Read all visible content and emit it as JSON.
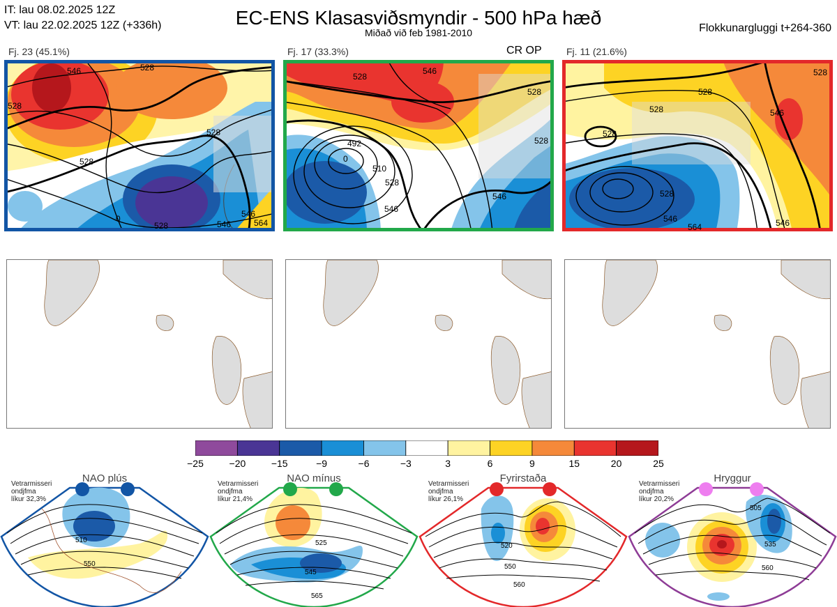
{
  "header": {
    "it_line": "IT: lau 08.02.2025 12Z",
    "vt_line": "VT: lau 22.02.2025 12Z  (+336h)",
    "title": "EC-ENS Klasasviðsmyndir - 500 hPa hæð",
    "subtitle": "Miðað við feb 1981-2010",
    "window": "Flokkunargluggi t+264-360"
  },
  "clusters": [
    {
      "label": "Fj. 23 (45.1%)",
      "members": 23,
      "percent": 45.1,
      "frame_color": "#1255a5",
      "contour_labels": [
        "546",
        "528",
        "528",
        "528",
        "528",
        "0",
        "546",
        "528",
        "546",
        "564"
      ]
    },
    {
      "label": "Fj. 17 (33.3%)",
      "members": 17,
      "percent": 33.3,
      "frame_color": "#22a84a",
      "contour_labels": [
        "528",
        "546",
        "528",
        "492",
        "510",
        "528",
        "546",
        "546",
        "528",
        "0"
      ]
    },
    {
      "label": "Fj. 11 (21.6%)",
      "members": 11,
      "percent": 21.6,
      "frame_color": "#e3282a",
      "contour_labels": [
        "528",
        "528",
        "528",
        "546",
        "528",
        "546",
        "546",
        "564",
        "528"
      ]
    }
  ],
  "cr_op": "CR OP",
  "chart_data": {
    "type": "heatmap",
    "title": "EC-ENS Klasasviðsmyndir - 500 hPa hæð",
    "subtitle": "Miðað við feb 1981-2010",
    "colorbar": {
      "ticks": [
        "−25",
        "−20",
        "−15",
        "−9",
        "−6",
        "−3",
        "3",
        "6",
        "9",
        "15",
        "20",
        "25"
      ],
      "colors": [
        "#8f4a9c",
        "#4a3595",
        "#1b5aa8",
        "#1a8fd6",
        "#84c4ea",
        "#ffffff",
        "#fff3a0",
        "#fdd324",
        "#f5893a",
        "#e9342f",
        "#b5171c"
      ]
    }
  },
  "regimes": [
    {
      "name": "NAO plús",
      "note": [
        "Vetrarmisseri",
        "ondjfma",
        "líkur 32,3%"
      ],
      "color": "#1255a5",
      "labels": [
        "510",
        "550"
      ]
    },
    {
      "name": "NAO mínus",
      "note": [
        "Vetrarmisseri",
        "ondjfma",
        "líkur 21,4%"
      ],
      "color": "#22a84a",
      "labels": [
        "525",
        "545",
        "565"
      ]
    },
    {
      "name": "Fyrirstaða",
      "note": [
        "Vetrarmisseri",
        "ondjfma",
        "líkur 26,1%"
      ],
      "color": "#e3282a",
      "labels": [
        "520",
        "550",
        "560"
      ]
    },
    {
      "name": "Hryggur",
      "note": [
        "Vetrarmisseri",
        "ondjfma",
        "líkur 20,2%"
      ],
      "color": "#8e3c96",
      "labels": [
        "505",
        "535",
        "560"
      ]
    }
  ]
}
